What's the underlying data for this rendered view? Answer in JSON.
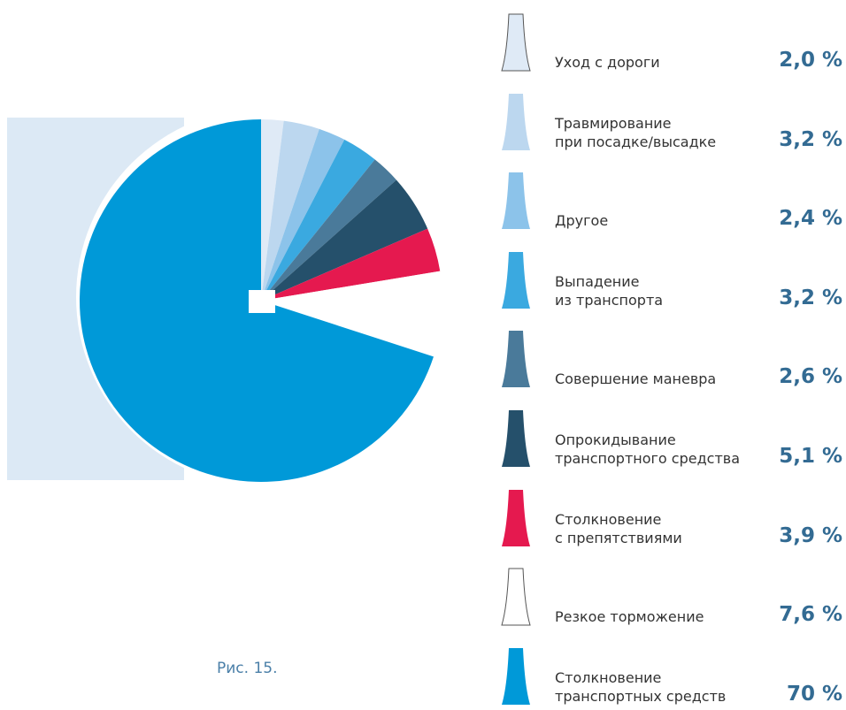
{
  "chart_data": {
    "type": "pie",
    "caption": "Рис. 15.",
    "categories": [
      "Уход с дороги",
      "Травмирование\nпри посадке/высадке",
      "Другое",
      "Выпадение\nиз транспорта",
      "Совершение маневра",
      "Опрокидывание\nтранспортного средства",
      "Столкновение\nс препятствиями",
      "Резкое торможение",
      "Столкновение\nтранспортных средств"
    ],
    "values": [
      2.0,
      3.2,
      2.4,
      3.2,
      2.6,
      5.1,
      3.9,
      7.6,
      70
    ],
    "value_labels": [
      "2,0 %",
      "3,2 %",
      "2,4 %",
      "3,2 %",
      "2,6 %",
      "5,1 %",
      "3,9 %",
      "7,6 %",
      "70 %"
    ],
    "colors": [
      "#dfeaf6",
      "#bcd7ef",
      "#8cc3ea",
      "#3aa9e0",
      "#4a7a9a",
      "#25506b",
      "#e5194f",
      "#ffffff",
      "#0099d8"
    ]
  }
}
